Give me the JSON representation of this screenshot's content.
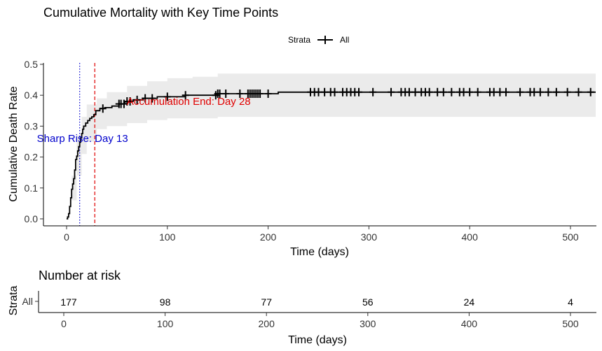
{
  "chart_data": [
    {
      "type": "line",
      "title": "Cumulative Mortality with Key Time Points",
      "xlabel": "Time (days)",
      "ylabel": "Cumulative Death Rate",
      "xlim": [
        -10,
        525
      ],
      "ylim": [
        -0.015,
        0.505
      ],
      "xticks": [
        0,
        100,
        200,
        300,
        400,
        500
      ],
      "yticks": [
        0.0,
        0.1,
        0.2,
        0.3,
        0.4,
        0.5
      ],
      "ytick_labels": [
        "0.0",
        "0.1",
        "0.2",
        "0.3",
        "0.4",
        "0.5"
      ],
      "legend": {
        "title": "Strata",
        "items": [
          "All"
        ],
        "position": "top"
      },
      "colors": {
        "line": "#000000",
        "ci": "#ebebeb",
        "sharp_rise": "#0000cc",
        "accumulation_end": "#e00000"
      },
      "series": [
        {
          "name": "All",
          "step": [
            [
              0,
              0.0
            ],
            [
              1,
              0.006
            ],
            [
              2,
              0.017
            ],
            [
              3,
              0.04
            ],
            [
              4,
              0.068
            ],
            [
              5,
              0.096
            ],
            [
              6,
              0.113
            ],
            [
              7,
              0.13
            ],
            [
              8,
              0.158
            ],
            [
              9,
              0.192
            ],
            [
              10,
              0.203
            ],
            [
              11,
              0.22
            ],
            [
              12,
              0.234
            ],
            [
              13,
              0.248
            ],
            [
              14,
              0.262
            ],
            [
              15,
              0.276
            ],
            [
              16,
              0.29
            ],
            [
              17,
              0.3
            ],
            [
              19,
              0.31
            ],
            [
              21,
              0.318
            ],
            [
              23,
              0.325
            ],
            [
              25,
              0.33
            ],
            [
              27,
              0.337
            ],
            [
              29,
              0.35
            ],
            [
              33,
              0.357
            ],
            [
              38,
              0.36
            ],
            [
              45,
              0.365
            ],
            [
              52,
              0.372
            ],
            [
              58,
              0.38
            ],
            [
              66,
              0.385
            ],
            [
              76,
              0.39
            ],
            [
              90,
              0.395
            ],
            [
              118,
              0.4
            ],
            [
              150,
              0.405
            ],
            [
              210,
              0.41
            ],
            [
              525,
              0.41
            ]
          ],
          "ci_upper": [
            [
              0,
              0.0
            ],
            [
              5,
              0.14
            ],
            [
              10,
              0.27
            ],
            [
              15,
              0.33
            ],
            [
              20,
              0.37
            ],
            [
              30,
              0.39
            ],
            [
              40,
              0.41
            ],
            [
              60,
              0.43
            ],
            [
              80,
              0.445
            ],
            [
              100,
              0.455
            ],
            [
              125,
              0.46
            ],
            [
              150,
              0.47
            ],
            [
              525,
              0.47
            ]
          ],
          "ci_lower": [
            [
              0,
              0.0
            ],
            [
              5,
              0.06
            ],
            [
              10,
              0.14
            ],
            [
              15,
              0.21
            ],
            [
              20,
              0.25
            ],
            [
              30,
              0.29
            ],
            [
              40,
              0.3
            ],
            [
              60,
              0.31
            ],
            [
              80,
              0.32
            ],
            [
              100,
              0.325
            ],
            [
              150,
              0.33
            ],
            [
              525,
              0.33
            ]
          ],
          "censor_times": [
            36,
            52,
            54,
            57,
            60,
            63,
            70,
            78,
            85,
            100,
            118,
            148,
            150,
            152,
            158,
            172,
            180,
            182,
            184,
            186,
            188,
            190,
            192,
            200,
            242,
            246,
            250,
            256,
            262,
            266,
            274,
            278,
            282,
            286,
            290,
            304,
            322,
            332,
            336,
            340,
            346,
            352,
            356,
            360,
            368,
            374,
            382,
            390,
            394,
            400,
            408,
            420,
            424,
            430,
            436,
            450,
            460,
            464,
            470,
            478,
            486,
            497,
            508,
            520
          ]
        }
      ],
      "annotations": [
        {
          "text": "Sharp Rise: Day 13",
          "x": 13,
          "y": 0.26,
          "line_style": "dotted"
        },
        {
          "text": "Accumulation End: Day 28",
          "x": 28,
          "y": 0.38,
          "line_style": "dashed"
        }
      ]
    },
    {
      "type": "table",
      "title": "Number at risk",
      "xlabel": "Time (days)",
      "ylabel": "Strata",
      "row_label": "All",
      "x": [
        0,
        100,
        200,
        300,
        400,
        500
      ],
      "values": [
        "177",
        "98",
        "77",
        "56",
        "24",
        "4"
      ]
    }
  ]
}
